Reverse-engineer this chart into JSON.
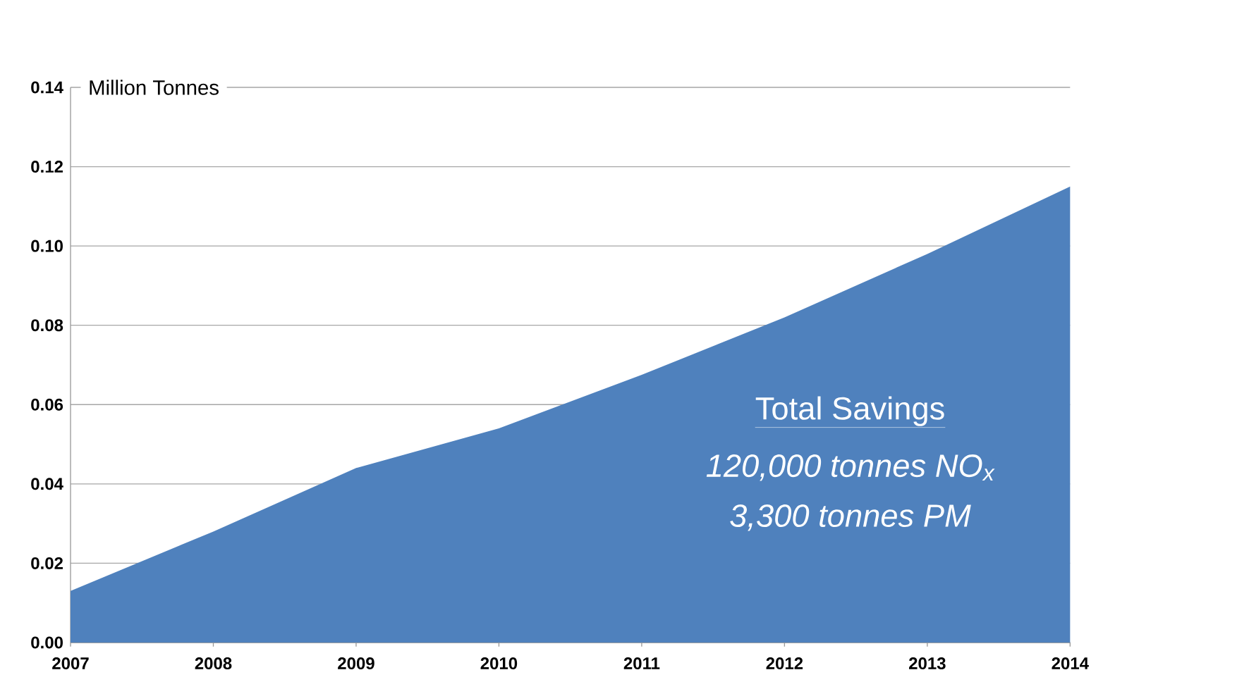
{
  "chart_data": {
    "type": "area",
    "ylabel": "Million Tonnes",
    "x": [
      2007,
      2008,
      2009,
      2010,
      2011,
      2012,
      2013,
      2014
    ],
    "series": [
      {
        "color": "#4f81bd",
        "values": [
          0.013,
          0.028,
          0.044,
          0.054,
          0.0675,
          0.082,
          0.098,
          0.115
        ]
      }
    ],
    "xlim": [
      2007,
      2014
    ],
    "xticks": [
      2007,
      2008,
      2009,
      2010,
      2011,
      2012,
      2013,
      2014
    ],
    "ylim": [
      0,
      0.14
    ],
    "yticks": [
      {
        "value": 0,
        "label": "0.00"
      },
      {
        "value": 0.02,
        "label": "0.02"
      },
      {
        "value": 0.04,
        "label": "0.04"
      },
      {
        "value": 0.06,
        "label": "0.06"
      },
      {
        "value": 0.08,
        "label": "0.08"
      },
      {
        "value": 0.1,
        "label": "0.10"
      },
      {
        "value": 0.12,
        "label": "0.12"
      },
      {
        "value": 0.14,
        "label": "0.14"
      }
    ],
    "grid": "y",
    "annotations": [
      "Total Savings",
      "120,000 tonnes NO$_{x}$",
      "3,300 tonnes PM"
    ]
  }
}
